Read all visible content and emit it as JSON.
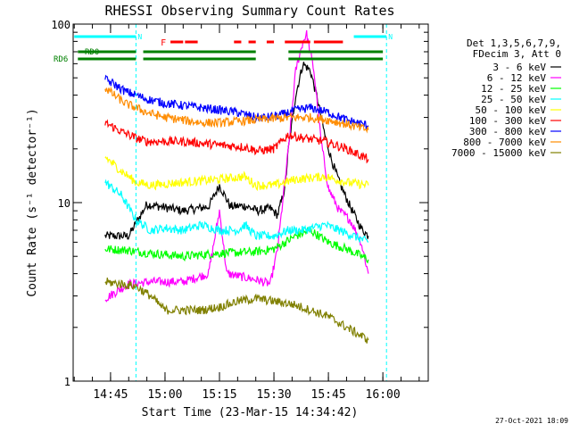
{
  "chart_data": {
    "type": "line",
    "title": "RHESSI Observing Summary Count Rates",
    "xlabel": "Start Time (23-Mar-15 14:34:42)",
    "ylabel": "Count Rate (s⁻¹ detector⁻¹)",
    "y_scale": "log",
    "ylim": [
      1,
      100
    ],
    "xlim": [
      "14:34:42",
      "16:12:30"
    ],
    "x_ticks": [
      "14:45",
      "15:00",
      "15:15",
      "15:30",
      "15:45",
      "16:00"
    ],
    "y_ticks": [
      {
        "value": 1,
        "label": "1"
      },
      {
        "value": 10,
        "label": "10"
      },
      {
        "value": 100,
        "label": "100"
      }
    ],
    "legend_header": [
      "Det 1,3,5,6,7,9,",
      "FDecim 3, Att 0"
    ],
    "legend_position": "right",
    "timestamp": "27-Oct-2021 18:09",
    "day_intervals": [
      {
        "label": "N",
        "start": "14:35:00",
        "end": "14:52:00"
      },
      {
        "label": "N",
        "start": "15:52:00",
        "end": "16:01:00"
      }
    ],
    "eclipse_marks": [
      "14:52:00",
      "16:01:00"
    ],
    "flare": {
      "label": "F",
      "segments": [
        [
          "15:01:30",
          "15:05:00"
        ],
        [
          "15:05:30",
          "15:09:00"
        ],
        [
          "15:19:00",
          "15:21:00"
        ],
        [
          "15:23:00",
          "15:25:00"
        ],
        [
          "15:28:00",
          "15:30:00"
        ],
        [
          "15:33:00",
          "15:40:00"
        ],
        [
          "15:41:00",
          "15:49:00"
        ]
      ]
    },
    "saa_flags": [
      {
        "label": "RD0",
        "segments": [
          [
            "14:36:00",
            "14:52:00"
          ],
          [
            "14:54:00",
            "15:25:00"
          ],
          [
            "15:34:00",
            "16:00:00"
          ]
        ]
      },
      {
        "label": "RD6",
        "segments": [
          [
            "14:36:00",
            "14:52:00"
          ],
          [
            "14:54:00",
            "15:25:00"
          ],
          [
            "15:34:00",
            "16:00:00"
          ]
        ]
      }
    ],
    "series": [
      {
        "name": "3 - 6 keV",
        "color": "#000000",
        "points": [
          [
            "14:43:30",
            6.5
          ],
          [
            "14:50:00",
            6.5
          ],
          [
            "14:55:00",
            9.8
          ],
          [
            "15:05:00",
            9.0
          ],
          [
            "15:12:00",
            9.5
          ],
          [
            "15:15:00",
            12.5
          ],
          [
            "15:18:00",
            9.5
          ],
          [
            "15:22:00",
            9.6
          ],
          [
            "15:25:30",
            9.0
          ],
          [
            "15:29:00",
            9.3
          ],
          [
            "15:31:00",
            8.5
          ],
          [
            "15:33:00",
            12.0
          ],
          [
            "15:34:00",
            20.0
          ],
          [
            "15:36:00",
            40.0
          ],
          [
            "15:38:00",
            60.0
          ],
          [
            "15:40:00",
            55.0
          ],
          [
            "15:42:00",
            38.0
          ],
          [
            "15:44:00",
            24.0
          ],
          [
            "15:46:00",
            17.0
          ],
          [
            "15:48:00",
            13.0
          ],
          [
            "15:51:00",
            9.5
          ],
          [
            "15:54:00",
            7.2
          ],
          [
            "15:56:00",
            6.5
          ]
        ]
      },
      {
        "name": "6 - 12 keV",
        "color": "#ff00ff",
        "points": [
          [
            "14:43:30",
            2.9
          ],
          [
            "14:50:00",
            3.5
          ],
          [
            "14:56:00",
            3.6
          ],
          [
            "15:05:00",
            3.6
          ],
          [
            "15:12:00",
            4.0
          ],
          [
            "15:15:00",
            9.0
          ],
          [
            "15:17:00",
            4.0
          ],
          [
            "15:25:00",
            3.7
          ],
          [
            "15:29:00",
            3.5
          ],
          [
            "15:31:00",
            5.5
          ],
          [
            "15:34:00",
            20.0
          ],
          [
            "15:36:00",
            55.0
          ],
          [
            "15:38:00",
            80.0
          ],
          [
            "15:39:00",
            88.0
          ],
          [
            "15:41:00",
            55.0
          ],
          [
            "15:43:00",
            22.0
          ],
          [
            "15:45:00",
            12.0
          ],
          [
            "15:48:00",
            9.0
          ],
          [
            "15:51:00",
            8.0
          ],
          [
            "15:54:00",
            6.0
          ],
          [
            "15:56:00",
            4.0
          ]
        ]
      },
      {
        "name": "12 - 25 keV",
        "color": "#00ff00",
        "points": [
          [
            "14:43:30",
            5.5
          ],
          [
            "14:50:00",
            5.4
          ],
          [
            "14:56:00",
            5.2
          ],
          [
            "15:05:00",
            5.0
          ],
          [
            "15:15:00",
            5.2
          ],
          [
            "15:25:00",
            5.3
          ],
          [
            "15:30:00",
            5.5
          ],
          [
            "15:36:00",
            6.5
          ],
          [
            "15:40:00",
            7.0
          ],
          [
            "15:45:00",
            6.0
          ],
          [
            "15:50:00",
            5.5
          ],
          [
            "15:56:00",
            4.8
          ]
        ]
      },
      {
        "name": "25 - 50 keV",
        "color": "#00ffff",
        "points": [
          [
            "14:43:30",
            13.0
          ],
          [
            "14:48:00",
            11.0
          ],
          [
            "14:52:00",
            8.0
          ],
          [
            "14:56:00",
            7.0
          ],
          [
            "15:00:00",
            7.2
          ],
          [
            "15:05:00",
            7.0
          ],
          [
            "15:10:00",
            7.5
          ],
          [
            "15:15:00",
            7.0
          ],
          [
            "15:20:00",
            7.0
          ],
          [
            "15:22:00",
            7.5
          ],
          [
            "15:25:00",
            6.5
          ],
          [
            "15:30:00",
            6.5
          ],
          [
            "15:34:00",
            7.0
          ],
          [
            "15:38:00",
            7.0
          ],
          [
            "15:44:00",
            7.5
          ],
          [
            "15:48:00",
            7.0
          ],
          [
            "15:52:00",
            6.5
          ],
          [
            "15:56:00",
            6.0
          ]
        ]
      },
      {
        "name": "50 - 100 keV",
        "color": "#ffff00",
        "points": [
          [
            "14:43:30",
            18.0
          ],
          [
            "14:48:00",
            15.0
          ],
          [
            "14:52:00",
            13.0
          ],
          [
            "14:56:00",
            12.5
          ],
          [
            "15:05:00",
            13.0
          ],
          [
            "15:15:00",
            13.5
          ],
          [
            "15:22:00",
            14.0
          ],
          [
            "15:25:00",
            12.5
          ],
          [
            "15:30:00",
            12.5
          ],
          [
            "15:36:00",
            13.5
          ],
          [
            "15:44:00",
            14.0
          ],
          [
            "15:50:00",
            13.0
          ],
          [
            "15:56:00",
            12.5
          ]
        ]
      },
      {
        "name": "100 - 300 keV",
        "color": "#ff0000",
        "points": [
          [
            "14:43:30",
            28.0
          ],
          [
            "14:48:00",
            25.0
          ],
          [
            "14:52:00",
            23.0
          ],
          [
            "14:55:00",
            22.0
          ],
          [
            "15:05:00",
            22.0
          ],
          [
            "15:15:00",
            21.0
          ],
          [
            "15:22:00",
            20.5
          ],
          [
            "15:25:30",
            19.5
          ],
          [
            "15:30:00",
            20.0
          ],
          [
            "15:34:00",
            24.0
          ],
          [
            "15:38:00",
            23.0
          ],
          [
            "15:44:00",
            22.0
          ],
          [
            "15:50:00",
            20.0
          ],
          [
            "15:56:00",
            17.5
          ]
        ]
      },
      {
        "name": "300 - 800 keV",
        "color": "#0000ff",
        "points": [
          [
            "14:43:30",
            49.0
          ],
          [
            "14:46:00",
            46.0
          ],
          [
            "14:49:00",
            42.0
          ],
          [
            "14:52:00",
            40.0
          ],
          [
            "14:55:00",
            38.0
          ],
          [
            "15:00:00",
            36.0
          ],
          [
            "15:05:00",
            35.0
          ],
          [
            "15:10:00",
            34.0
          ],
          [
            "15:15:00",
            33.0
          ],
          [
            "15:20:00",
            32.0
          ],
          [
            "15:25:00",
            30.0
          ],
          [
            "15:28:00",
            30.0
          ],
          [
            "15:32:00",
            31.0
          ],
          [
            "15:36:00",
            33.0
          ],
          [
            "15:40:00",
            34.0
          ],
          [
            "15:45:00",
            32.0
          ],
          [
            "15:50:00",
            29.0
          ],
          [
            "15:56:00",
            27.0
          ]
        ]
      },
      {
        "name": "800 - 7000 keV",
        "color": "#ff8c00",
        "points": [
          [
            "14:43:30",
            44.0
          ],
          [
            "14:46:00",
            40.0
          ],
          [
            "14:49:00",
            36.0
          ],
          [
            "14:52:00",
            34.0
          ],
          [
            "14:55:00",
            32.0
          ],
          [
            "15:00:00",
            30.0
          ],
          [
            "15:05:00",
            29.0
          ],
          [
            "15:10:00",
            28.0
          ],
          [
            "15:15:00",
            28.0
          ],
          [
            "15:20:00",
            28.5
          ],
          [
            "15:25:00",
            29.0
          ],
          [
            "15:30:00",
            29.5
          ],
          [
            "15:35:00",
            30.0
          ],
          [
            "15:40:00",
            30.0
          ],
          [
            "15:45:00",
            29.0
          ],
          [
            "15:50:00",
            27.5
          ],
          [
            "15:56:00",
            25.5
          ]
        ]
      },
      {
        "name": "7000 - 15000 keV",
        "color": "#808000",
        "points": [
          [
            "14:43:30",
            3.6
          ],
          [
            "14:48:00",
            3.5
          ],
          [
            "14:52:00",
            3.4
          ],
          [
            "14:56:00",
            3.0
          ],
          [
            "15:00:00",
            2.5
          ],
          [
            "15:05:00",
            2.5
          ],
          [
            "15:10:00",
            2.5
          ],
          [
            "15:15:00",
            2.6
          ],
          [
            "15:20:00",
            2.8
          ],
          [
            "15:25:00",
            2.9
          ],
          [
            "15:30:00",
            2.8
          ],
          [
            "15:35:00",
            2.7
          ],
          [
            "15:40:00",
            2.5
          ],
          [
            "15:45:00",
            2.3
          ],
          [
            "15:50:00",
            2.0
          ],
          [
            "15:56:00",
            1.7
          ]
        ]
      }
    ]
  }
}
